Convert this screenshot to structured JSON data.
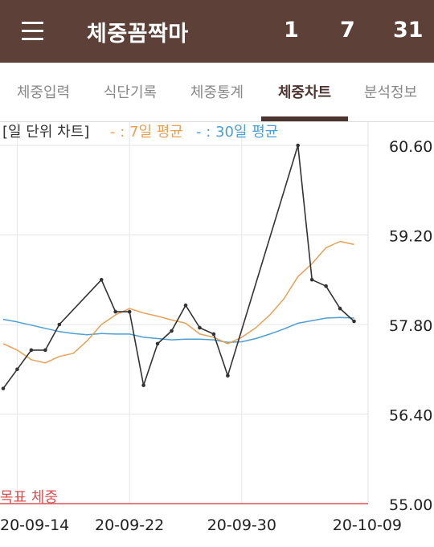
{
  "app": {
    "title": "체중꼼짝마"
  },
  "header_stats": [
    "1",
    "7",
    "31"
  ],
  "tabs": [
    {
      "label": "체중입력"
    },
    {
      "label": "식단기록"
    },
    {
      "label": "체중통계"
    },
    {
      "label": "체중차트",
      "active": true
    },
    {
      "label": "분석정보"
    }
  ],
  "colors": {
    "appbar": "#5d4037",
    "daily_line": "#333333",
    "avg7": "#e8a055",
    "avg30": "#4c9fd4",
    "goal": "#e05050"
  },
  "chart_data": {
    "type": "line",
    "legend": {
      "title": "[일 단위 차트]",
      "avg7_label": "- : 7일 평균",
      "avg30_label": "- : 30일 평균"
    },
    "x_range": [
      "2020-09-13",
      "2020-10-09"
    ],
    "x_ticks": [
      {
        "date": "2020-09-14",
        "label": "20-09-14"
      },
      {
        "date": "2020-09-22",
        "label": "20-09-22"
      },
      {
        "date": "2020-09-30",
        "label": "20-09-30"
      },
      {
        "date": "2020-10-09",
        "label": "20-10-09"
      }
    ],
    "y_ticks": [
      55.0,
      56.4,
      57.8,
      59.2,
      60.6
    ],
    "ylim": [
      55.0,
      60.6
    ],
    "goal": {
      "label": "목표 체중",
      "value": 55.0
    },
    "series": [
      {
        "key": "daily",
        "x": [
          "2020-09-13",
          "2020-09-14",
          "2020-09-15",
          "2020-09-16",
          "2020-09-17",
          "2020-09-20",
          "2020-09-21",
          "2020-09-22",
          "2020-09-23",
          "2020-09-24",
          "2020-09-25",
          "2020-09-26",
          "2020-09-27",
          "2020-09-28",
          "2020-09-29",
          "2020-10-04",
          "2020-10-05",
          "2020-10-06",
          "2020-10-07",
          "2020-10-08"
        ],
        "values": [
          56.8,
          57.1,
          57.4,
          57.4,
          57.8,
          58.5,
          58.0,
          58.0,
          56.85,
          57.5,
          57.7,
          58.1,
          57.75,
          57.65,
          57.0,
          60.6,
          58.5,
          58.4,
          58.05,
          57.85
        ]
      },
      {
        "key": "avg7",
        "x": [
          "2020-09-13",
          "2020-09-14",
          "2020-09-15",
          "2020-09-16",
          "2020-09-17",
          "2020-09-18",
          "2020-09-19",
          "2020-09-20",
          "2020-09-21",
          "2020-09-22",
          "2020-09-23",
          "2020-09-24",
          "2020-09-25",
          "2020-09-26",
          "2020-09-27",
          "2020-09-28",
          "2020-09-29",
          "2020-09-30",
          "2020-10-01",
          "2020-10-02",
          "2020-10-03",
          "2020-10-04",
          "2020-10-05",
          "2020-10-06",
          "2020-10-07",
          "2020-10-08"
        ],
        "values": [
          57.5,
          57.4,
          57.25,
          57.2,
          57.3,
          57.35,
          57.55,
          57.8,
          57.95,
          58.05,
          57.98,
          57.93,
          57.87,
          57.82,
          57.65,
          57.6,
          57.5,
          57.6,
          57.75,
          57.95,
          58.2,
          58.55,
          58.75,
          59.0,
          59.1,
          59.05
        ]
      },
      {
        "key": "avg30",
        "x": [
          "2020-09-13",
          "2020-09-14",
          "2020-09-15",
          "2020-09-16",
          "2020-09-17",
          "2020-09-18",
          "2020-09-19",
          "2020-09-20",
          "2020-09-21",
          "2020-09-22",
          "2020-09-23",
          "2020-09-24",
          "2020-09-25",
          "2020-09-26",
          "2020-09-27",
          "2020-09-28",
          "2020-09-29",
          "2020-09-30",
          "2020-10-01",
          "2020-10-02",
          "2020-10-03",
          "2020-10-04",
          "2020-10-05",
          "2020-10-06",
          "2020-10-07",
          "2020-10-08"
        ],
        "values": [
          57.88,
          57.84,
          57.79,
          57.74,
          57.69,
          57.66,
          57.64,
          57.66,
          57.65,
          57.65,
          57.6,
          57.58,
          57.56,
          57.57,
          57.57,
          57.56,
          57.52,
          57.53,
          57.58,
          57.65,
          57.73,
          57.82,
          57.86,
          57.9,
          57.91,
          57.9
        ]
      }
    ]
  }
}
